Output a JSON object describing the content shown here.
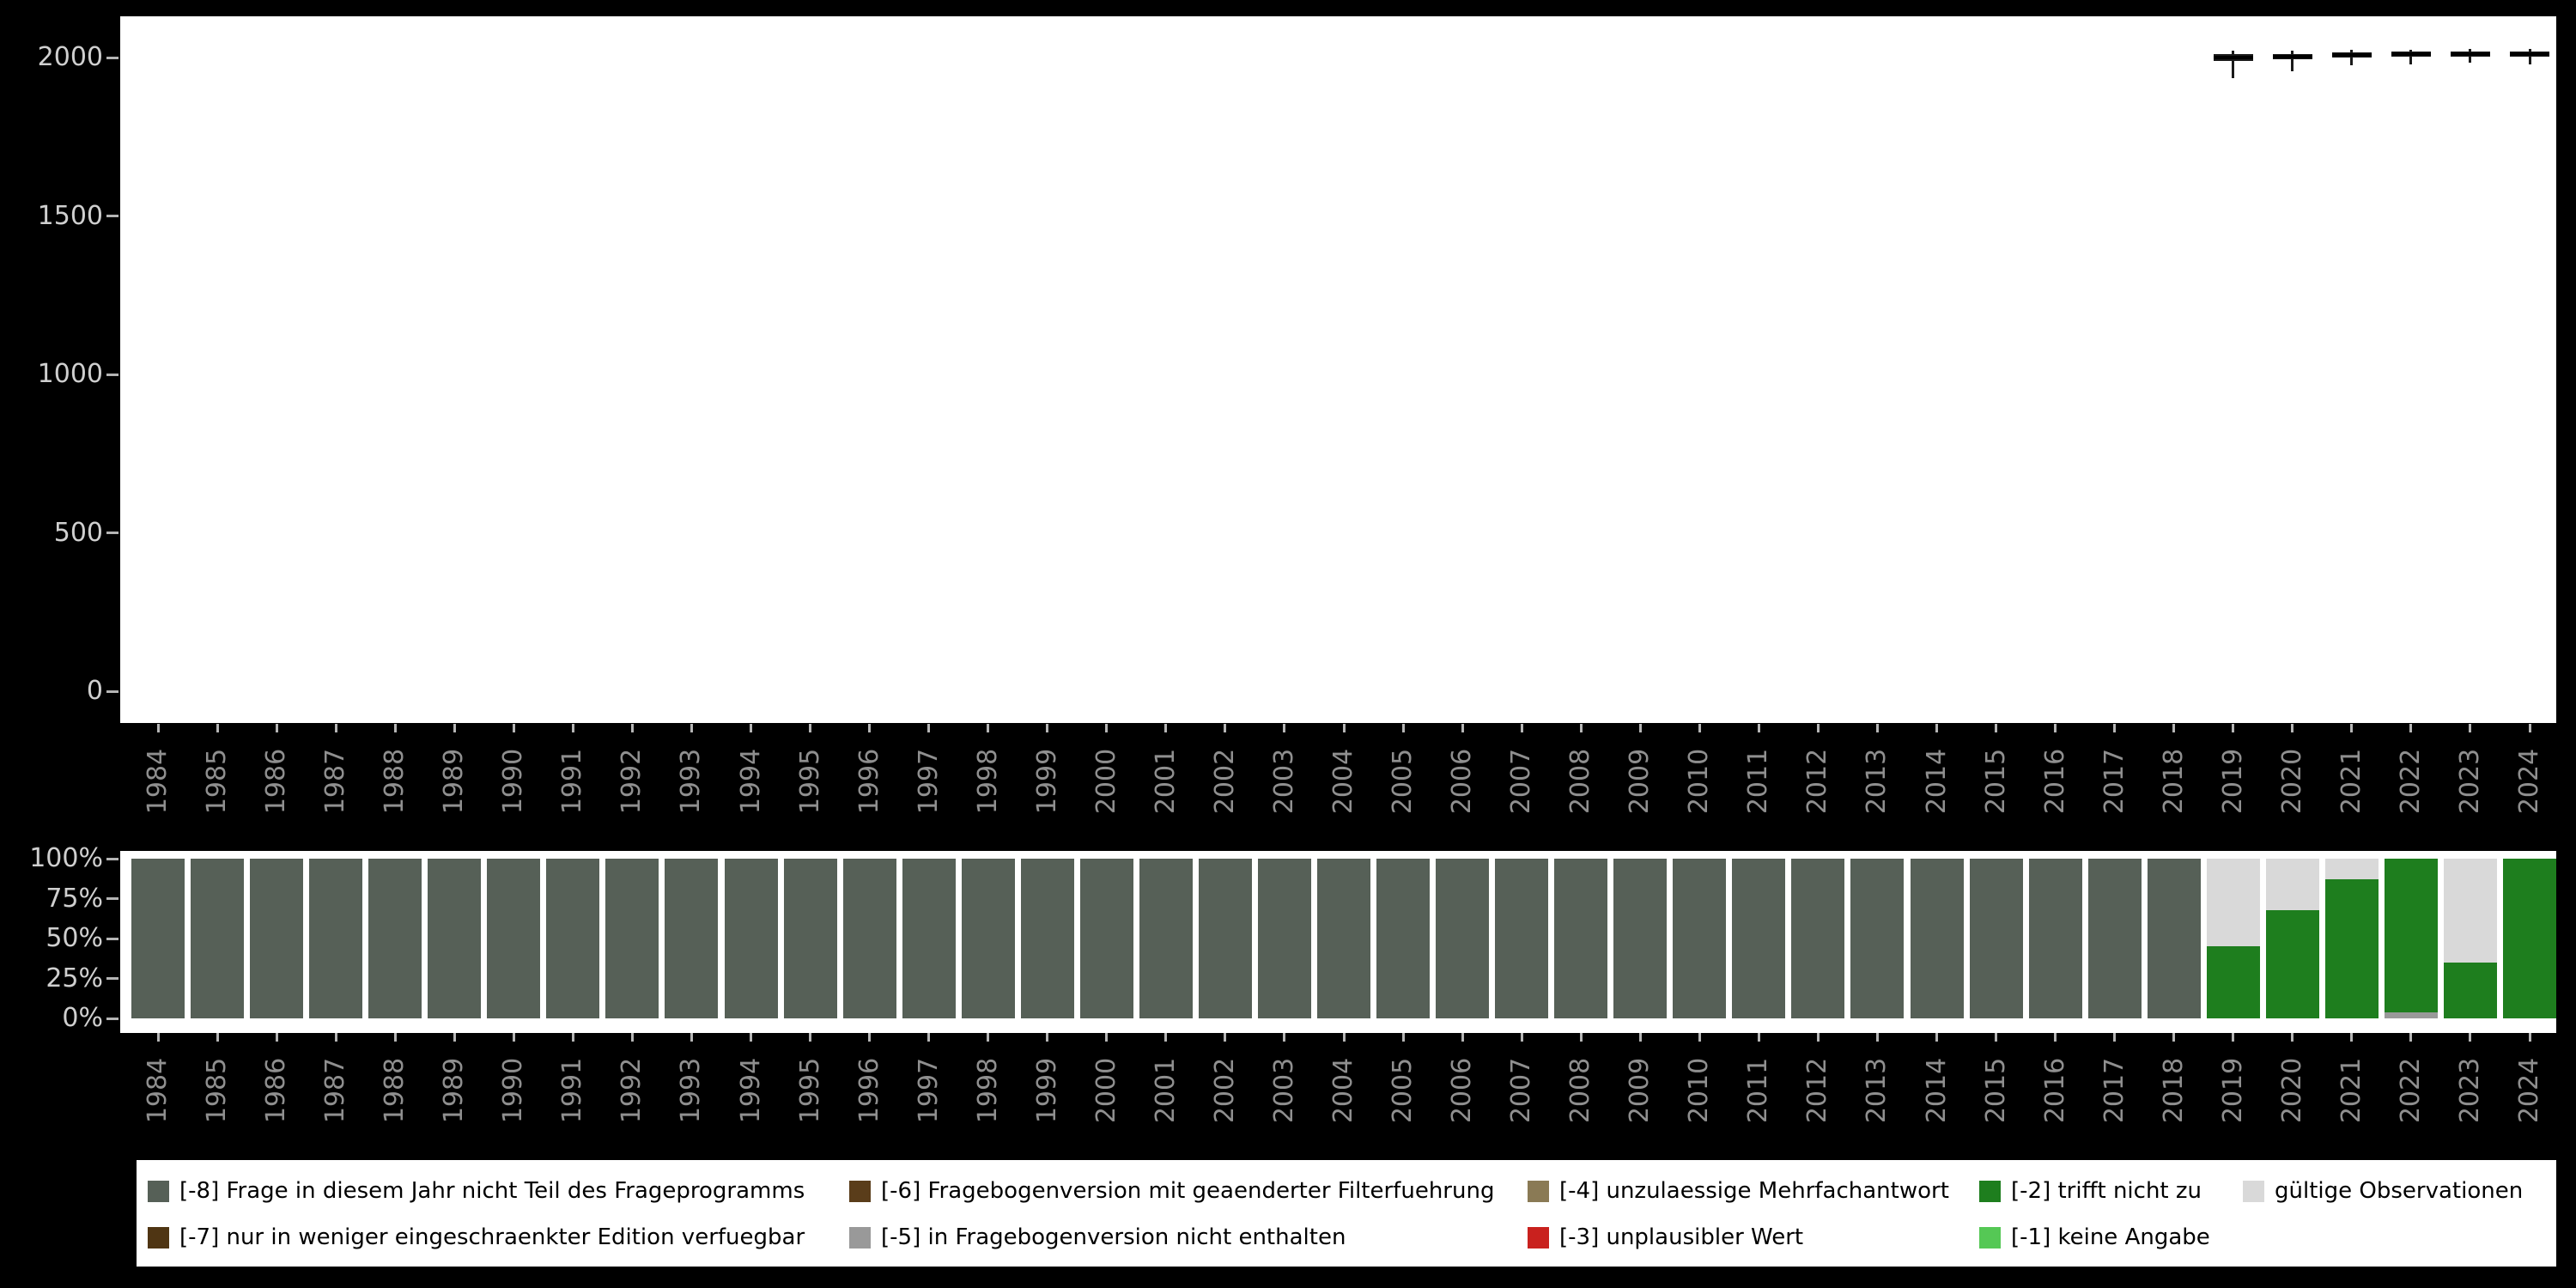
{
  "colors": {
    "background": "#000000",
    "panel": "#ffffff",
    "axis_value_text": "#cfcfcf",
    "axis_year_text": "#8f8f8f",
    "tick": "#b5b5b5",
    "boxplot": "#1a1a1a"
  },
  "legend": {
    "items": [
      {
        "code": "-8",
        "label": "[-8] Frage in diesem Jahr nicht Teil des Frageprogramms",
        "color": "#566057",
        "row": 0,
        "col": 0
      },
      {
        "code": "-7",
        "label": "[-7] nur in weniger eingeschraenkter Edition verfuegbar",
        "color": "#4f3513",
        "row": 1,
        "col": 0
      },
      {
        "code": "-6",
        "label": "[-6] Fragebogenversion mit geaenderter Filterfuehrung",
        "color": "#5a3d1a",
        "row": 0,
        "col": 1
      },
      {
        "code": "-5",
        "label": "[-5] in Fragebogenversion nicht enthalten",
        "color": "#999999",
        "row": 1,
        "col": 1
      },
      {
        "code": "-4",
        "label": "[-4] unzulaessige Mehrfachantwort",
        "color": "#8a7a55",
        "row": 0,
        "col": 2
      },
      {
        "code": "-3",
        "label": "[-3] unplausibler Wert",
        "color": "#c9211e",
        "row": 1,
        "col": 2
      },
      {
        "code": "-2",
        "label": "[-2] trifft nicht zu",
        "color": "#1e7e1e",
        "row": 0,
        "col": 3
      },
      {
        "code": "-1",
        "label": "[-1] keine Angabe",
        "color": "#55c855",
        "row": 1,
        "col": 3
      },
      {
        "code": "valid",
        "label": "gültige Observationen",
        "color": "#d9d9d9",
        "row": 0,
        "col": 4
      }
    ]
  },
  "chart_data": [
    {
      "type": "boxplot",
      "title": "",
      "xlabel": "",
      "ylabel": "",
      "x_categories": [
        1984,
        1985,
        1986,
        1987,
        1988,
        1989,
        1990,
        1991,
        1992,
        1993,
        1994,
        1995,
        1996,
        1997,
        1998,
        1999,
        2000,
        2001,
        2002,
        2003,
        2004,
        2005,
        2006,
        2007,
        2008,
        2009,
        2010,
        2011,
        2012,
        2013,
        2014,
        2015,
        2016,
        2017,
        2018,
        2019,
        2020,
        2021,
        2022,
        2023,
        2024
      ],
      "ylim": [
        0,
        2100
      ],
      "yticks": [
        0,
        500,
        1000,
        1500,
        2000
      ],
      "grid": false,
      "note": "boxplots of values only for waves 2019-2024, values clustered near 2000",
      "boxes": [
        {
          "x": 2019,
          "whisker_low": 1935,
          "q1": 1988,
          "median": 2000,
          "q3": 2010,
          "whisker_high": 2022
        },
        {
          "x": 2020,
          "whisker_low": 1958,
          "q1": 1995,
          "median": 2004,
          "q3": 2012,
          "whisker_high": 2023
        },
        {
          "x": 2021,
          "whisker_low": 1975,
          "q1": 2000,
          "median": 2008,
          "q3": 2016,
          "whisker_high": 2024
        },
        {
          "x": 2022,
          "whisker_low": 1980,
          "q1": 2002,
          "median": 2010,
          "q3": 2018,
          "whisker_high": 2025
        },
        {
          "x": 2023,
          "whisker_low": 1982,
          "q1": 2004,
          "median": 2012,
          "q3": 2019,
          "whisker_high": 2026
        },
        {
          "x": 2024,
          "whisker_low": 1978,
          "q1": 2003,
          "median": 2011,
          "q3": 2018,
          "whisker_high": 2026
        }
      ]
    },
    {
      "type": "stacked-bar-percent",
      "title": "",
      "xlabel": "",
      "ylabel": "",
      "categories": [
        1984,
        1985,
        1986,
        1987,
        1988,
        1989,
        1990,
        1991,
        1992,
        1993,
        1994,
        1995,
        1996,
        1997,
        1998,
        1999,
        2000,
        2001,
        2002,
        2003,
        2004,
        2005,
        2006,
        2007,
        2008,
        2009,
        2010,
        2011,
        2012,
        2013,
        2014,
        2015,
        2016,
        2017,
        2018,
        2019,
        2020,
        2021,
        2022,
        2023,
        2024
      ],
      "yticks": [
        0,
        25,
        50,
        75,
        100
      ],
      "ytick_suffix": "%",
      "grid": false,
      "bars": [
        {
          "year": 1984,
          "segments": [
            {
              "code": "-8",
              "pct": 100
            }
          ]
        },
        {
          "year": 1985,
          "segments": [
            {
              "code": "-8",
              "pct": 100
            }
          ]
        },
        {
          "year": 1986,
          "segments": [
            {
              "code": "-8",
              "pct": 100
            }
          ]
        },
        {
          "year": 1987,
          "segments": [
            {
              "code": "-8",
              "pct": 100
            }
          ]
        },
        {
          "year": 1988,
          "segments": [
            {
              "code": "-8",
              "pct": 100
            }
          ]
        },
        {
          "year": 1989,
          "segments": [
            {
              "code": "-8",
              "pct": 100
            }
          ]
        },
        {
          "year": 1990,
          "segments": [
            {
              "code": "-8",
              "pct": 100
            }
          ]
        },
        {
          "year": 1991,
          "segments": [
            {
              "code": "-8",
              "pct": 100
            }
          ]
        },
        {
          "year": 1992,
          "segments": [
            {
              "code": "-8",
              "pct": 100
            }
          ]
        },
        {
          "year": 1993,
          "segments": [
            {
              "code": "-8",
              "pct": 100
            }
          ]
        },
        {
          "year": 1994,
          "segments": [
            {
              "code": "-8",
              "pct": 100
            }
          ]
        },
        {
          "year": 1995,
          "segments": [
            {
              "code": "-8",
              "pct": 100
            }
          ]
        },
        {
          "year": 1996,
          "segments": [
            {
              "code": "-8",
              "pct": 100
            }
          ]
        },
        {
          "year": 1997,
          "segments": [
            {
              "code": "-8",
              "pct": 100
            }
          ]
        },
        {
          "year": 1998,
          "segments": [
            {
              "code": "-8",
              "pct": 100
            }
          ]
        },
        {
          "year": 1999,
          "segments": [
            {
              "code": "-8",
              "pct": 100
            }
          ]
        },
        {
          "year": 2000,
          "segments": [
            {
              "code": "-8",
              "pct": 100
            }
          ]
        },
        {
          "year": 2001,
          "segments": [
            {
              "code": "-8",
              "pct": 100
            }
          ]
        },
        {
          "year": 2002,
          "segments": [
            {
              "code": "-8",
              "pct": 100
            }
          ]
        },
        {
          "year": 2003,
          "segments": [
            {
              "code": "-8",
              "pct": 100
            }
          ]
        },
        {
          "year": 2004,
          "segments": [
            {
              "code": "-8",
              "pct": 100
            }
          ]
        },
        {
          "year": 2005,
          "segments": [
            {
              "code": "-8",
              "pct": 100
            }
          ]
        },
        {
          "year": 2006,
          "segments": [
            {
              "code": "-8",
              "pct": 100
            }
          ]
        },
        {
          "year": 2007,
          "segments": [
            {
              "code": "-8",
              "pct": 100
            }
          ]
        },
        {
          "year": 2008,
          "segments": [
            {
              "code": "-8",
              "pct": 100
            }
          ]
        },
        {
          "year": 2009,
          "segments": [
            {
              "code": "-8",
              "pct": 100
            }
          ]
        },
        {
          "year": 2010,
          "segments": [
            {
              "code": "-8",
              "pct": 100
            }
          ]
        },
        {
          "year": 2011,
          "segments": [
            {
              "code": "-8",
              "pct": 100
            }
          ]
        },
        {
          "year": 2012,
          "segments": [
            {
              "code": "-8",
              "pct": 100
            }
          ]
        },
        {
          "year": 2013,
          "segments": [
            {
              "code": "-8",
              "pct": 100
            }
          ]
        },
        {
          "year": 2014,
          "segments": [
            {
              "code": "-8",
              "pct": 100
            }
          ]
        },
        {
          "year": 2015,
          "segments": [
            {
              "code": "-8",
              "pct": 100
            }
          ]
        },
        {
          "year": 2016,
          "segments": [
            {
              "code": "-8",
              "pct": 100
            }
          ]
        },
        {
          "year": 2017,
          "segments": [
            {
              "code": "-8",
              "pct": 100
            }
          ]
        },
        {
          "year": 2018,
          "segments": [
            {
              "code": "-8",
              "pct": 100
            }
          ]
        },
        {
          "year": 2019,
          "segments": [
            {
              "code": "-2",
              "pct": 45
            },
            {
              "code": "valid",
              "pct": 55
            }
          ]
        },
        {
          "year": 2020,
          "segments": [
            {
              "code": "-2",
              "pct": 68
            },
            {
              "code": "valid",
              "pct": 32
            }
          ]
        },
        {
          "year": 2021,
          "segments": [
            {
              "code": "-2",
              "pct": 87
            },
            {
              "code": "valid",
              "pct": 13
            }
          ]
        },
        {
          "year": 2022,
          "segments": [
            {
              "code": "-5",
              "pct": 4
            },
            {
              "code": "-2",
              "pct": 96
            }
          ]
        },
        {
          "year": 2023,
          "segments": [
            {
              "code": "-2",
              "pct": 35
            },
            {
              "code": "valid",
              "pct": 65
            }
          ]
        },
        {
          "year": 2024,
          "segments": [
            {
              "code": "-2",
              "pct": 100
            }
          ]
        }
      ]
    }
  ]
}
